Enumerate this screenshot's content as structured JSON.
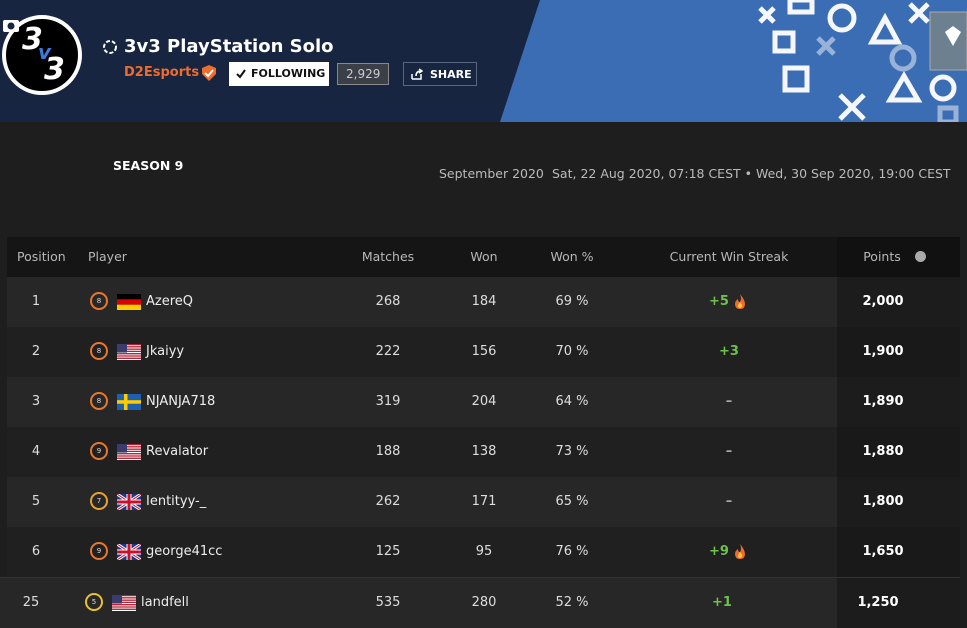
{
  "header": {
    "logo_glyphs": [
      "3",
      "v",
      "3"
    ],
    "title": "3v3 PlayStation Solo",
    "organizer": "D2Esports",
    "follow_button": "FOLLOWING",
    "followers": "2,929",
    "share_button": "SHARE"
  },
  "season": "SEASON 9",
  "period": "September 2020",
  "dates": "Sat, 22 Aug 2020, 07:18 CEST • Wed, 30 Sep 2020, 19:00 CEST",
  "table": {
    "columns": [
      "Position",
      "Player",
      "Matches",
      "Won",
      "Won %",
      "Current Win Streak",
      "Points"
    ],
    "rows": [
      {
        "position": 1,
        "level": 8,
        "player": "AzereQ",
        "matches": 268,
        "won": 184,
        "won_pct": "69 %",
        "streak": "+5",
        "points": "2,000"
      },
      {
        "position": 2,
        "level": 8,
        "player": "Jkaiyy",
        "matches": 222,
        "won": 156,
        "won_pct": "70 %",
        "streak": "+3",
        "points": "1,900"
      },
      {
        "position": 3,
        "level": 8,
        "player": "NJANJA718",
        "matches": 319,
        "won": 204,
        "won_pct": "64 %",
        "streak": "–",
        "points": "1,890"
      },
      {
        "position": 4,
        "level": 9,
        "player": "Revalator",
        "matches": 188,
        "won": 138,
        "won_pct": "73 %",
        "streak": "–",
        "points": "1,880"
      },
      {
        "position": 5,
        "level": 7,
        "player": "Ientityy-_",
        "matches": 262,
        "won": 171,
        "won_pct": "65 %",
        "streak": "–",
        "points": "1,800"
      },
      {
        "position": 6,
        "level": 9,
        "player": "george41cc",
        "matches": 125,
        "won": 95,
        "won_pct": "76 %",
        "streak": "+9",
        "points": "1,650"
      },
      {
        "position": 25,
        "level": 5,
        "player": "landfell",
        "matches": 535,
        "won": 280,
        "won_pct": "52 %",
        "streak": "+1",
        "points": "1,250"
      }
    ]
  }
}
